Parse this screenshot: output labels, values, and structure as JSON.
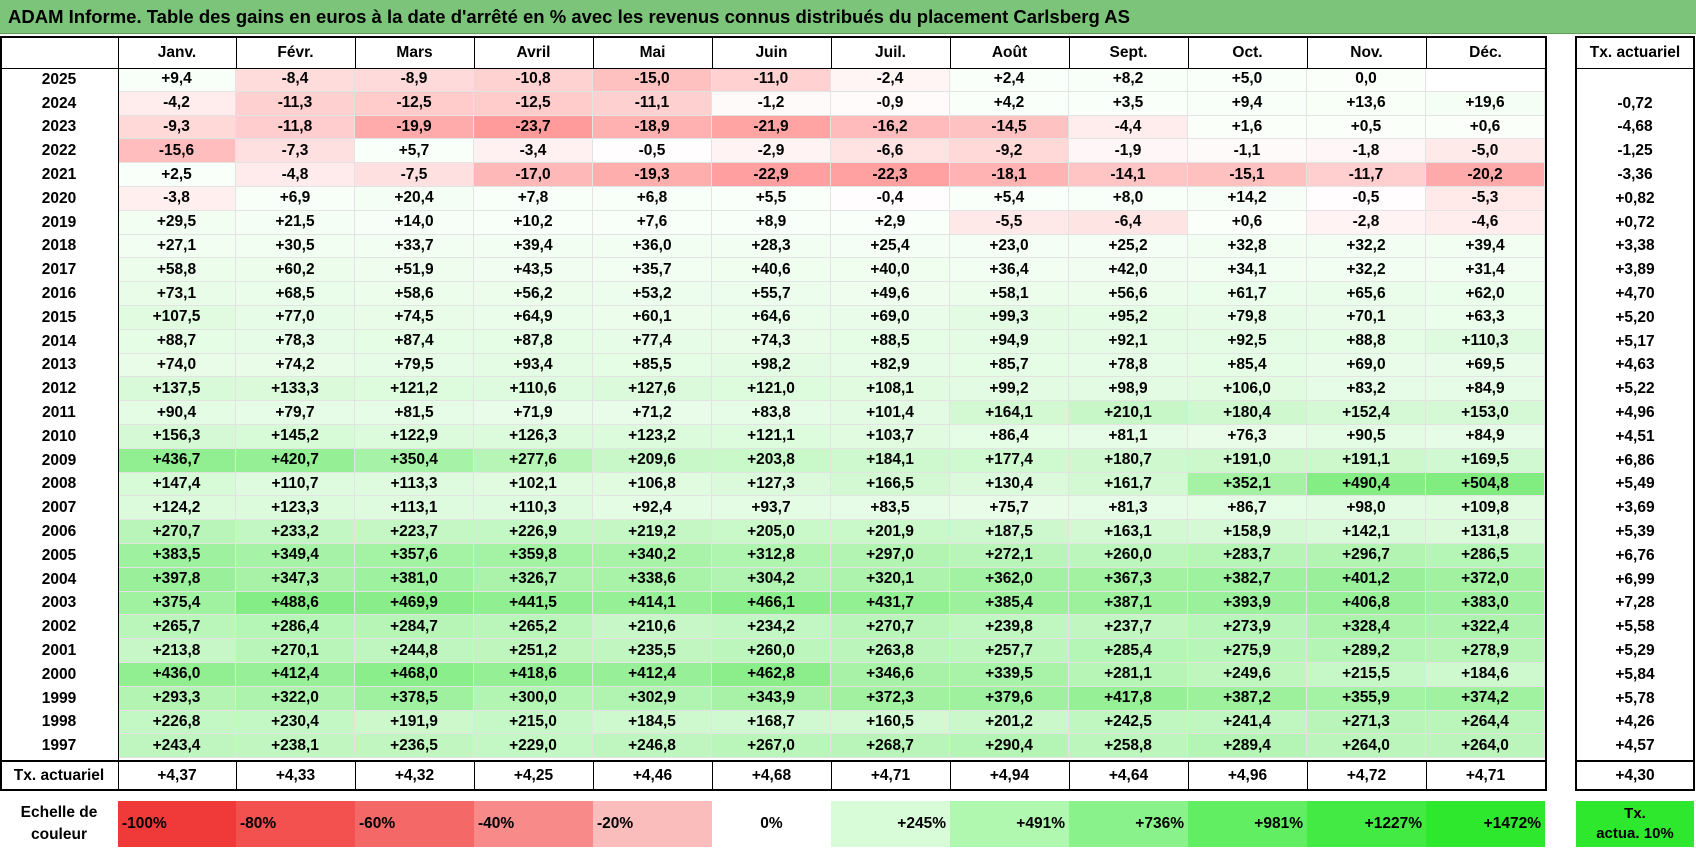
{
  "title": "ADAM Informe. Table des gains en euros à la date d'arrêté en % avec les revenus connus distribués du placement Carlsberg AS",
  "months": [
    "Janv.",
    "Févr.",
    "Mars",
    "Avril",
    "Mai",
    "Juin",
    "Juil.",
    "Août",
    "Sept.",
    "Oct.",
    "Nov.",
    "Déc."
  ],
  "tx_header": "Tx. actuariel",
  "rows": [
    {
      "year": "2025",
      "values": [
        "+9,4",
        "-8,4",
        "-8,9",
        "-10,8",
        "-15,0",
        "-11,0",
        "-2,4",
        "+2,4",
        "+8,2",
        "+5,0",
        "0,0",
        ""
      ],
      "tx": ""
    },
    {
      "year": "2024",
      "values": [
        "-4,2",
        "-11,3",
        "-12,5",
        "-12,5",
        "-11,1",
        "-1,2",
        "-0,9",
        "+4,2",
        "+3,5",
        "+9,4",
        "+13,6",
        "+19,6"
      ],
      "tx": "-0,72"
    },
    {
      "year": "2023",
      "values": [
        "-9,3",
        "-11,8",
        "-19,9",
        "-23,7",
        "-18,9",
        "-21,9",
        "-16,2",
        "-14,5",
        "-4,4",
        "+1,6",
        "+0,5",
        "+0,6"
      ],
      "tx": "-4,68"
    },
    {
      "year": "2022",
      "values": [
        "-15,6",
        "-7,3",
        "+5,7",
        "-3,4",
        "-0,5",
        "-2,9",
        "-6,6",
        "-9,2",
        "-1,9",
        "-1,1",
        "-1,8",
        "-5,0"
      ],
      "tx": "-1,25"
    },
    {
      "year": "2021",
      "values": [
        "+2,5",
        "-4,8",
        "-7,5",
        "-17,0",
        "-19,3",
        "-22,9",
        "-22,3",
        "-18,1",
        "-14,1",
        "-15,1",
        "-11,7",
        "-20,2"
      ],
      "tx": "-3,36"
    },
    {
      "year": "2020",
      "values": [
        "-3,8",
        "+6,9",
        "+20,4",
        "+7,8",
        "+6,8",
        "+5,5",
        "-0,4",
        "+5,4",
        "+8,0",
        "+14,2",
        "-0,5",
        "-5,3"
      ],
      "tx": "+0,82"
    },
    {
      "year": "2019",
      "values": [
        "+29,5",
        "+21,5",
        "+14,0",
        "+10,2",
        "+7,6",
        "+8,9",
        "+2,9",
        "-5,5",
        "-6,4",
        "+0,6",
        "-2,8",
        "-4,6"
      ],
      "tx": "+0,72"
    },
    {
      "year": "2018",
      "values": [
        "+27,1",
        "+30,5",
        "+33,7",
        "+39,4",
        "+36,0",
        "+28,3",
        "+25,4",
        "+23,0",
        "+25,2",
        "+32,8",
        "+32,2",
        "+39,4"
      ],
      "tx": "+3,38"
    },
    {
      "year": "2017",
      "values": [
        "+58,8",
        "+60,2",
        "+51,9",
        "+43,5",
        "+35,7",
        "+40,6",
        "+40,0",
        "+36,4",
        "+42,0",
        "+34,1",
        "+32,2",
        "+31,4"
      ],
      "tx": "+3,89"
    },
    {
      "year": "2016",
      "values": [
        "+73,1",
        "+68,5",
        "+58,6",
        "+56,2",
        "+53,2",
        "+55,7",
        "+49,6",
        "+58,1",
        "+56,6",
        "+61,7",
        "+65,6",
        "+62,0"
      ],
      "tx": "+4,70"
    },
    {
      "year": "2015",
      "values": [
        "+107,5",
        "+77,0",
        "+74,5",
        "+64,9",
        "+60,1",
        "+64,6",
        "+69,0",
        "+99,3",
        "+95,2",
        "+79,8",
        "+70,1",
        "+63,3"
      ],
      "tx": "+5,20"
    },
    {
      "year": "2014",
      "values": [
        "+88,7",
        "+78,3",
        "+87,4",
        "+87,8",
        "+77,4",
        "+74,3",
        "+88,5",
        "+94,9",
        "+92,1",
        "+92,5",
        "+88,8",
        "+110,3"
      ],
      "tx": "+5,17"
    },
    {
      "year": "2013",
      "values": [
        "+74,0",
        "+74,2",
        "+79,5",
        "+93,4",
        "+85,5",
        "+98,2",
        "+82,9",
        "+85,7",
        "+78,8",
        "+85,4",
        "+69,0",
        "+69,5"
      ],
      "tx": "+4,63"
    },
    {
      "year": "2012",
      "values": [
        "+137,5",
        "+133,3",
        "+121,2",
        "+110,6",
        "+127,6",
        "+121,0",
        "+108,1",
        "+99,2",
        "+98,9",
        "+106,0",
        "+83,2",
        "+84,9"
      ],
      "tx": "+5,22"
    },
    {
      "year": "2011",
      "values": [
        "+90,4",
        "+79,7",
        "+81,5",
        "+71,9",
        "+71,2",
        "+83,8",
        "+101,4",
        "+164,1",
        "+210,1",
        "+180,4",
        "+152,4",
        "+153,0"
      ],
      "tx": "+4,96"
    },
    {
      "year": "2010",
      "values": [
        "+156,3",
        "+145,2",
        "+122,9",
        "+126,3",
        "+123,2",
        "+121,1",
        "+103,7",
        "+86,4",
        "+81,1",
        "+76,3",
        "+90,5",
        "+84,9"
      ],
      "tx": "+4,51"
    },
    {
      "year": "2009",
      "values": [
        "+436,7",
        "+420,7",
        "+350,4",
        "+277,6",
        "+209,6",
        "+203,8",
        "+184,1",
        "+177,4",
        "+180,7",
        "+191,0",
        "+191,1",
        "+169,5"
      ],
      "tx": "+6,86"
    },
    {
      "year": "2008",
      "values": [
        "+147,4",
        "+110,7",
        "+113,3",
        "+102,1",
        "+106,8",
        "+127,3",
        "+166,5",
        "+130,4",
        "+161,7",
        "+352,1",
        "+490,4",
        "+504,8"
      ],
      "tx": "+5,49"
    },
    {
      "year": "2007",
      "values": [
        "+124,2",
        "+123,3",
        "+113,1",
        "+110,3",
        "+92,4",
        "+93,7",
        "+83,5",
        "+75,7",
        "+81,3",
        "+86,7",
        "+98,0",
        "+109,8"
      ],
      "tx": "+3,69"
    },
    {
      "year": "2006",
      "values": [
        "+270,7",
        "+233,2",
        "+223,7",
        "+226,9",
        "+219,2",
        "+205,0",
        "+201,9",
        "+187,5",
        "+163,1",
        "+158,9",
        "+142,1",
        "+131,8"
      ],
      "tx": "+5,39"
    },
    {
      "year": "2005",
      "values": [
        "+383,5",
        "+349,4",
        "+357,6",
        "+359,8",
        "+340,2",
        "+312,8",
        "+297,0",
        "+272,1",
        "+260,0",
        "+283,7",
        "+296,7",
        "+286,5"
      ],
      "tx": "+6,76"
    },
    {
      "year": "2004",
      "values": [
        "+397,8",
        "+347,3",
        "+381,0",
        "+326,7",
        "+338,6",
        "+304,2",
        "+320,1",
        "+362,0",
        "+367,3",
        "+382,7",
        "+401,2",
        "+372,0"
      ],
      "tx": "+6,99"
    },
    {
      "year": "2003",
      "values": [
        "+375,4",
        "+488,6",
        "+469,9",
        "+441,5",
        "+414,1",
        "+466,1",
        "+431,7",
        "+385,4",
        "+387,1",
        "+393,9",
        "+406,8",
        "+383,0"
      ],
      "tx": "+7,28"
    },
    {
      "year": "2002",
      "values": [
        "+265,7",
        "+286,4",
        "+284,7",
        "+265,2",
        "+210,6",
        "+234,2",
        "+270,7",
        "+239,8",
        "+237,7",
        "+273,9",
        "+328,4",
        "+322,4"
      ],
      "tx": "+5,58"
    },
    {
      "year": "2001",
      "values": [
        "+213,8",
        "+270,1",
        "+244,8",
        "+251,2",
        "+235,5",
        "+260,0",
        "+263,8",
        "+257,7",
        "+285,4",
        "+275,9",
        "+289,2",
        "+278,9"
      ],
      "tx": "+5,29"
    },
    {
      "year": "2000",
      "values": [
        "+436,0",
        "+412,4",
        "+468,0",
        "+418,6",
        "+412,4",
        "+462,8",
        "+346,6",
        "+339,5",
        "+281,1",
        "+249,6",
        "+215,5",
        "+184,6"
      ],
      "tx": "+5,84"
    },
    {
      "year": "1999",
      "values": [
        "+293,3",
        "+322,0",
        "+378,5",
        "+300,0",
        "+302,9",
        "+343,9",
        "+372,3",
        "+379,6",
        "+417,8",
        "+387,2",
        "+355,9",
        "+374,2"
      ],
      "tx": "+5,78"
    },
    {
      "year": "1998",
      "values": [
        "+226,8",
        "+230,4",
        "+191,9",
        "+215,0",
        "+184,5",
        "+168,7",
        "+160,5",
        "+201,2",
        "+242,5",
        "+241,4",
        "+271,3",
        "+264,4"
      ],
      "tx": "+4,26"
    },
    {
      "year": "1997",
      "values": [
        "+243,4",
        "+238,1",
        "+236,5",
        "+229,0",
        "+246,8",
        "+267,0",
        "+268,7",
        "+290,4",
        "+258,8",
        "+289,4",
        "+264,0",
        "+264,0"
      ],
      "tx": "+4,57"
    }
  ],
  "summary": {
    "label": "Tx. actuariel",
    "values": [
      "+4,37",
      "+4,33",
      "+4,32",
      "+4,25",
      "+4,46",
      "+4,68",
      "+4,71",
      "+4,94",
      "+4,64",
      "+4,96",
      "+4,72",
      "+4,71"
    ],
    "total": "+4,30"
  },
  "scale": {
    "label_line1": "Echelle de",
    "label_line2": "couleur",
    "items": [
      {
        "label": "-100%",
        "color": "#f03a3a",
        "align": "l"
      },
      {
        "label": "-80%",
        "color": "#f35050",
        "align": "l"
      },
      {
        "label": "-60%",
        "color": "#f56868",
        "align": "l"
      },
      {
        "label": "-40%",
        "color": "#f88a8a",
        "align": "l"
      },
      {
        "label": "-20%",
        "color": "#fbbcbc",
        "align": "l"
      },
      {
        "label": "0%",
        "color": "#ffffff",
        "align": "c"
      },
      {
        "label": "+245%",
        "color": "#d8fbd8",
        "align": "r"
      },
      {
        "label": "+491%",
        "color": "#b0f7b0",
        "align": "r"
      },
      {
        "label": "+736%",
        "color": "#8af28a",
        "align": "r"
      },
      {
        "label": "+981%",
        "color": "#62ee62",
        "align": "r"
      },
      {
        "label": "+1227%",
        "color": "#44ea44",
        "align": "r"
      },
      {
        "label": "+1472%",
        "color": "#2ee82e",
        "align": "r"
      }
    ],
    "tx_line1": "Tx.",
    "tx_line2": "actua. 10%"
  },
  "colors": {
    "title_bg": "#7cc47a"
  }
}
